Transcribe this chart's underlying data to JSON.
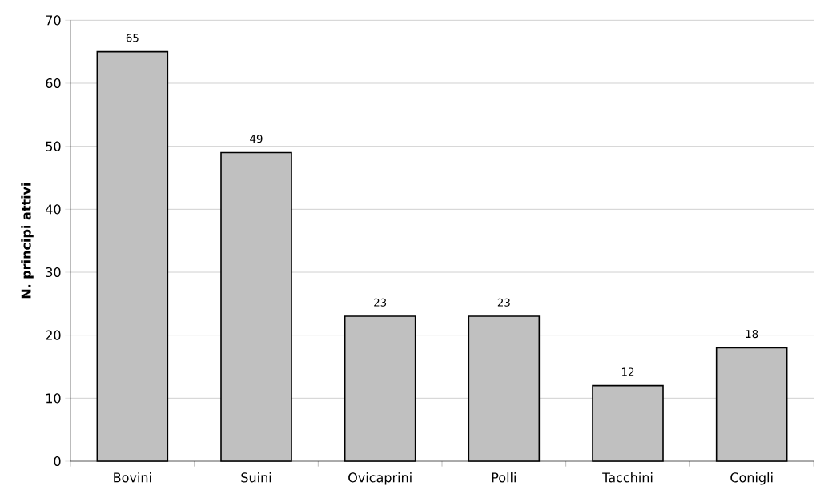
{
  "chart_data": {
    "type": "bar",
    "ylabel": "N. principi attivi",
    "categories": [
      "Bovini",
      "Suini",
      "Ovicaprini",
      "Polli",
      "Tacchini",
      "Conigli"
    ],
    "values": [
      65,
      49,
      23,
      23,
      12,
      18
    ],
    "color": "#c0c0c0",
    "ylim": [
      0,
      70
    ],
    "yticks": [
      0,
      10,
      20,
      30,
      40,
      50,
      60,
      70
    ],
    "grid": "y",
    "data_labels": true
  }
}
